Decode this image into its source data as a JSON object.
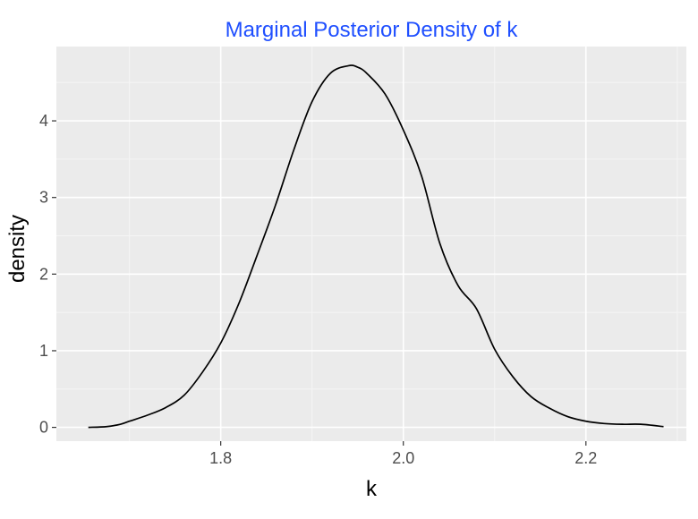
{
  "chart_data": {
    "type": "area",
    "title": "Marginal Posterior Density of k",
    "xlabel": "k",
    "ylabel": "density",
    "xlim": [
      1.62,
      2.31
    ],
    "ylim": [
      -0.18,
      4.97
    ],
    "x_ticks": [
      1.8,
      2.0,
      2.2
    ],
    "x_tick_labels": [
      "1.8",
      "2.0",
      "2.2"
    ],
    "y_ticks": [
      0,
      1,
      2,
      3,
      4
    ],
    "y_tick_labels": [
      "0",
      "1",
      "2",
      "3",
      "4"
    ],
    "grid": true,
    "series": [
      {
        "x": [
          1.655,
          1.675,
          1.69,
          1.7,
          1.72,
          1.74,
          1.76,
          1.78,
          1.8,
          1.82,
          1.84,
          1.86,
          1.88,
          1.9,
          1.92,
          1.94,
          1.95,
          1.96,
          1.98,
          2.0,
          2.02,
          2.04,
          2.06,
          2.08,
          2.1,
          2.12,
          2.14,
          2.16,
          2.18,
          2.2,
          2.22,
          2.24,
          2.26,
          2.285
        ],
        "y": [
          0.0,
          0.01,
          0.04,
          0.08,
          0.16,
          0.26,
          0.42,
          0.72,
          1.1,
          1.62,
          2.25,
          2.9,
          3.62,
          4.25,
          4.62,
          4.72,
          4.7,
          4.62,
          4.35,
          3.88,
          3.28,
          2.4,
          1.85,
          1.55,
          1.02,
          0.66,
          0.4,
          0.25,
          0.14,
          0.08,
          0.05,
          0.04,
          0.04,
          0.01
        ]
      }
    ],
    "colors": {
      "title": "#1f4fff",
      "panel_bg": "#ebebeb",
      "grid_major": "#ffffff",
      "grid_minor": "#f5f5f5",
      "line": "#000000",
      "tick_label": "#4d4d4d",
      "axis_title": "#000000"
    }
  }
}
